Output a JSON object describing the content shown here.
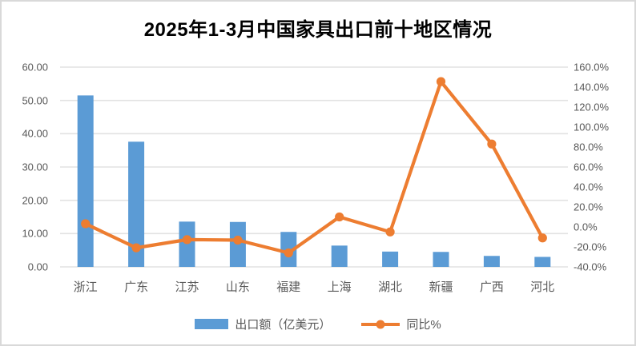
{
  "window": {
    "background": "#FFFFFF",
    "border_color": "#D9D9D9"
  },
  "colors": {
    "bar": "#5B9BD5",
    "line": "#ED7D31",
    "grid": "#E2E2E2",
    "axis_text": "#595959",
    "title_text": "#000000"
  },
  "chart_data": {
    "type": "bar+line combo",
    "title": "2025年1-3月中国家具出口前十地区情况",
    "categories": [
      "浙江",
      "广东",
      "江苏",
      "山东",
      "福建",
      "上海",
      "湖北",
      "新疆",
      "广西",
      "河北"
    ],
    "series": [
      {
        "name": "出口额（亿美元）",
        "type": "bar",
        "axis": "left",
        "color": "#5B9BD5",
        "values": [
          51.5,
          37.6,
          13.6,
          13.5,
          10.5,
          6.4,
          4.6,
          4.5,
          3.3,
          3.0
        ]
      },
      {
        "name": "同比%",
        "type": "line",
        "axis": "right",
        "color": "#ED7D31",
        "values": [
          3.2,
          -20.9,
          -12.7,
          -13.2,
          -26.0,
          10.0,
          -5.0,
          145.5,
          83.0,
          -11.0
        ]
      }
    ],
    "left_axis": {
      "min": 0,
      "max": 60,
      "step": 10,
      "tick_labels": [
        "0.00",
        "10.00",
        "20.00",
        "30.00",
        "40.00",
        "50.00",
        "60.00"
      ]
    },
    "right_axis": {
      "min": -40,
      "max": 160,
      "step": 20,
      "tick_labels": [
        "-40.0%",
        "-20.0%",
        "0.0%",
        "20.0%",
        "40.0%",
        "60.0%",
        "80.0%",
        "100.0%",
        "120.0%",
        "140.0%",
        "160.0%"
      ]
    },
    "grid": true,
    "legend_position": "bottom"
  }
}
